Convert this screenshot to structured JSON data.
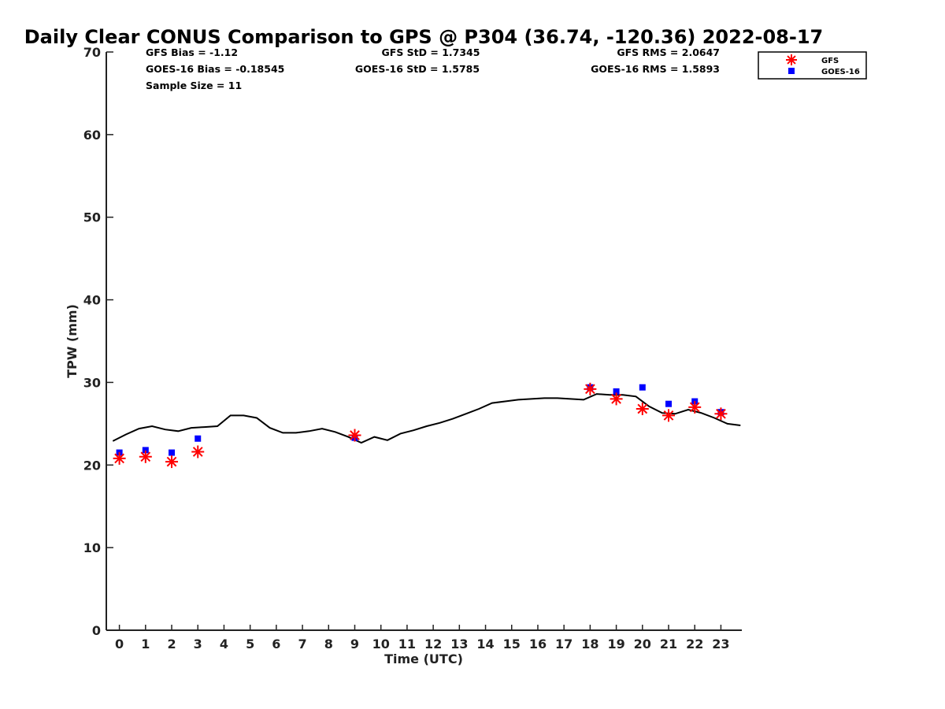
{
  "chart_data": {
    "type": "scatter",
    "title": "Daily Clear CONUS Comparison to GPS @ P304 (36.74, -120.36) 2022-08-17",
    "xlabel": "Time (UTC)",
    "ylabel": "TPW (mm)",
    "xlim": [
      -0.5,
      23.8
    ],
    "ylim": [
      0,
      70
    ],
    "xticks": [
      0,
      1,
      2,
      3,
      4,
      5,
      6,
      7,
      8,
      9,
      10,
      11,
      12,
      13,
      14,
      15,
      16,
      17,
      18,
      19,
      20,
      21,
      22,
      23
    ],
    "yticks": [
      0,
      10,
      20,
      30,
      40,
      50,
      60,
      70
    ],
    "grid": false,
    "legend_position": "top-right",
    "stats": {
      "gfs_bias": "GFS Bias = -1.12",
      "goes_bias": "GOES-16 Bias = -0.18545",
      "sample_size": "Sample Size = 11",
      "gfs_std": "GFS StD = 1.7345",
      "goes_std": "GOES-16 StD = 1.5785",
      "gfs_rms": "GFS RMS = 2.0647",
      "goes_rms": "GOES-16 RMS = 1.5893"
    },
    "series": [
      {
        "name": "GFS",
        "marker": "asterisk",
        "color": "#ff0000",
        "points": [
          [
            0,
            20.8
          ],
          [
            1,
            21.0
          ],
          [
            2,
            20.4
          ],
          [
            3,
            21.6
          ],
          [
            9,
            23.6
          ],
          [
            18,
            29.2
          ],
          [
            19,
            28.0
          ],
          [
            20,
            26.8
          ],
          [
            21,
            26.0
          ],
          [
            22,
            27.0
          ],
          [
            23,
            26.2
          ]
        ]
      },
      {
        "name": "GOES-16",
        "marker": "square",
        "color": "#0000ff",
        "points": [
          [
            0,
            21.5
          ],
          [
            1,
            21.8
          ],
          [
            2,
            21.5
          ],
          [
            3,
            23.2
          ],
          [
            9,
            23.3
          ],
          [
            18,
            29.4
          ],
          [
            19,
            28.9
          ],
          [
            20,
            29.4
          ],
          [
            21,
            27.4
          ],
          [
            22,
            27.7
          ],
          [
            23,
            26.4
          ]
        ]
      },
      {
        "marker": "line",
        "color": "#000000",
        "points": [
          [
            -0.25,
            22.9
          ],
          [
            0.25,
            23.7
          ],
          [
            0.75,
            24.4
          ],
          [
            1.25,
            24.7
          ],
          [
            1.75,
            24.3
          ],
          [
            2.25,
            24.1
          ],
          [
            2.75,
            24.5
          ],
          [
            3.25,
            24.6
          ],
          [
            3.75,
            24.7
          ],
          [
            4.25,
            26.0
          ],
          [
            4.75,
            26.0
          ],
          [
            5.25,
            25.7
          ],
          [
            5.75,
            24.5
          ],
          [
            6.25,
            23.9
          ],
          [
            6.75,
            23.9
          ],
          [
            7.25,
            24.1
          ],
          [
            7.75,
            24.4
          ],
          [
            8.25,
            24.0
          ],
          [
            8.75,
            23.4
          ],
          [
            9.25,
            22.7
          ],
          [
            9.75,
            23.4
          ],
          [
            10.25,
            23.0
          ],
          [
            10.75,
            23.8
          ],
          [
            11.25,
            24.2
          ],
          [
            11.75,
            24.7
          ],
          [
            12.25,
            25.1
          ],
          [
            12.75,
            25.6
          ],
          [
            13.25,
            26.2
          ],
          [
            13.75,
            26.8
          ],
          [
            14.25,
            27.5
          ],
          [
            14.75,
            27.7
          ],
          [
            15.25,
            27.9
          ],
          [
            15.75,
            28.0
          ],
          [
            16.25,
            28.1
          ],
          [
            16.75,
            28.1
          ],
          [
            17.25,
            28.0
          ],
          [
            17.75,
            27.9
          ],
          [
            18.25,
            28.6
          ],
          [
            18.75,
            28.5
          ],
          [
            19.25,
            28.5
          ],
          [
            19.75,
            28.3
          ],
          [
            20.25,
            27.1
          ],
          [
            20.75,
            26.3
          ],
          [
            21.25,
            26.2
          ],
          [
            21.75,
            26.7
          ],
          [
            22.25,
            26.3
          ],
          [
            22.75,
            25.7
          ],
          [
            23.25,
            25.0
          ],
          [
            23.75,
            24.8
          ]
        ]
      }
    ]
  }
}
